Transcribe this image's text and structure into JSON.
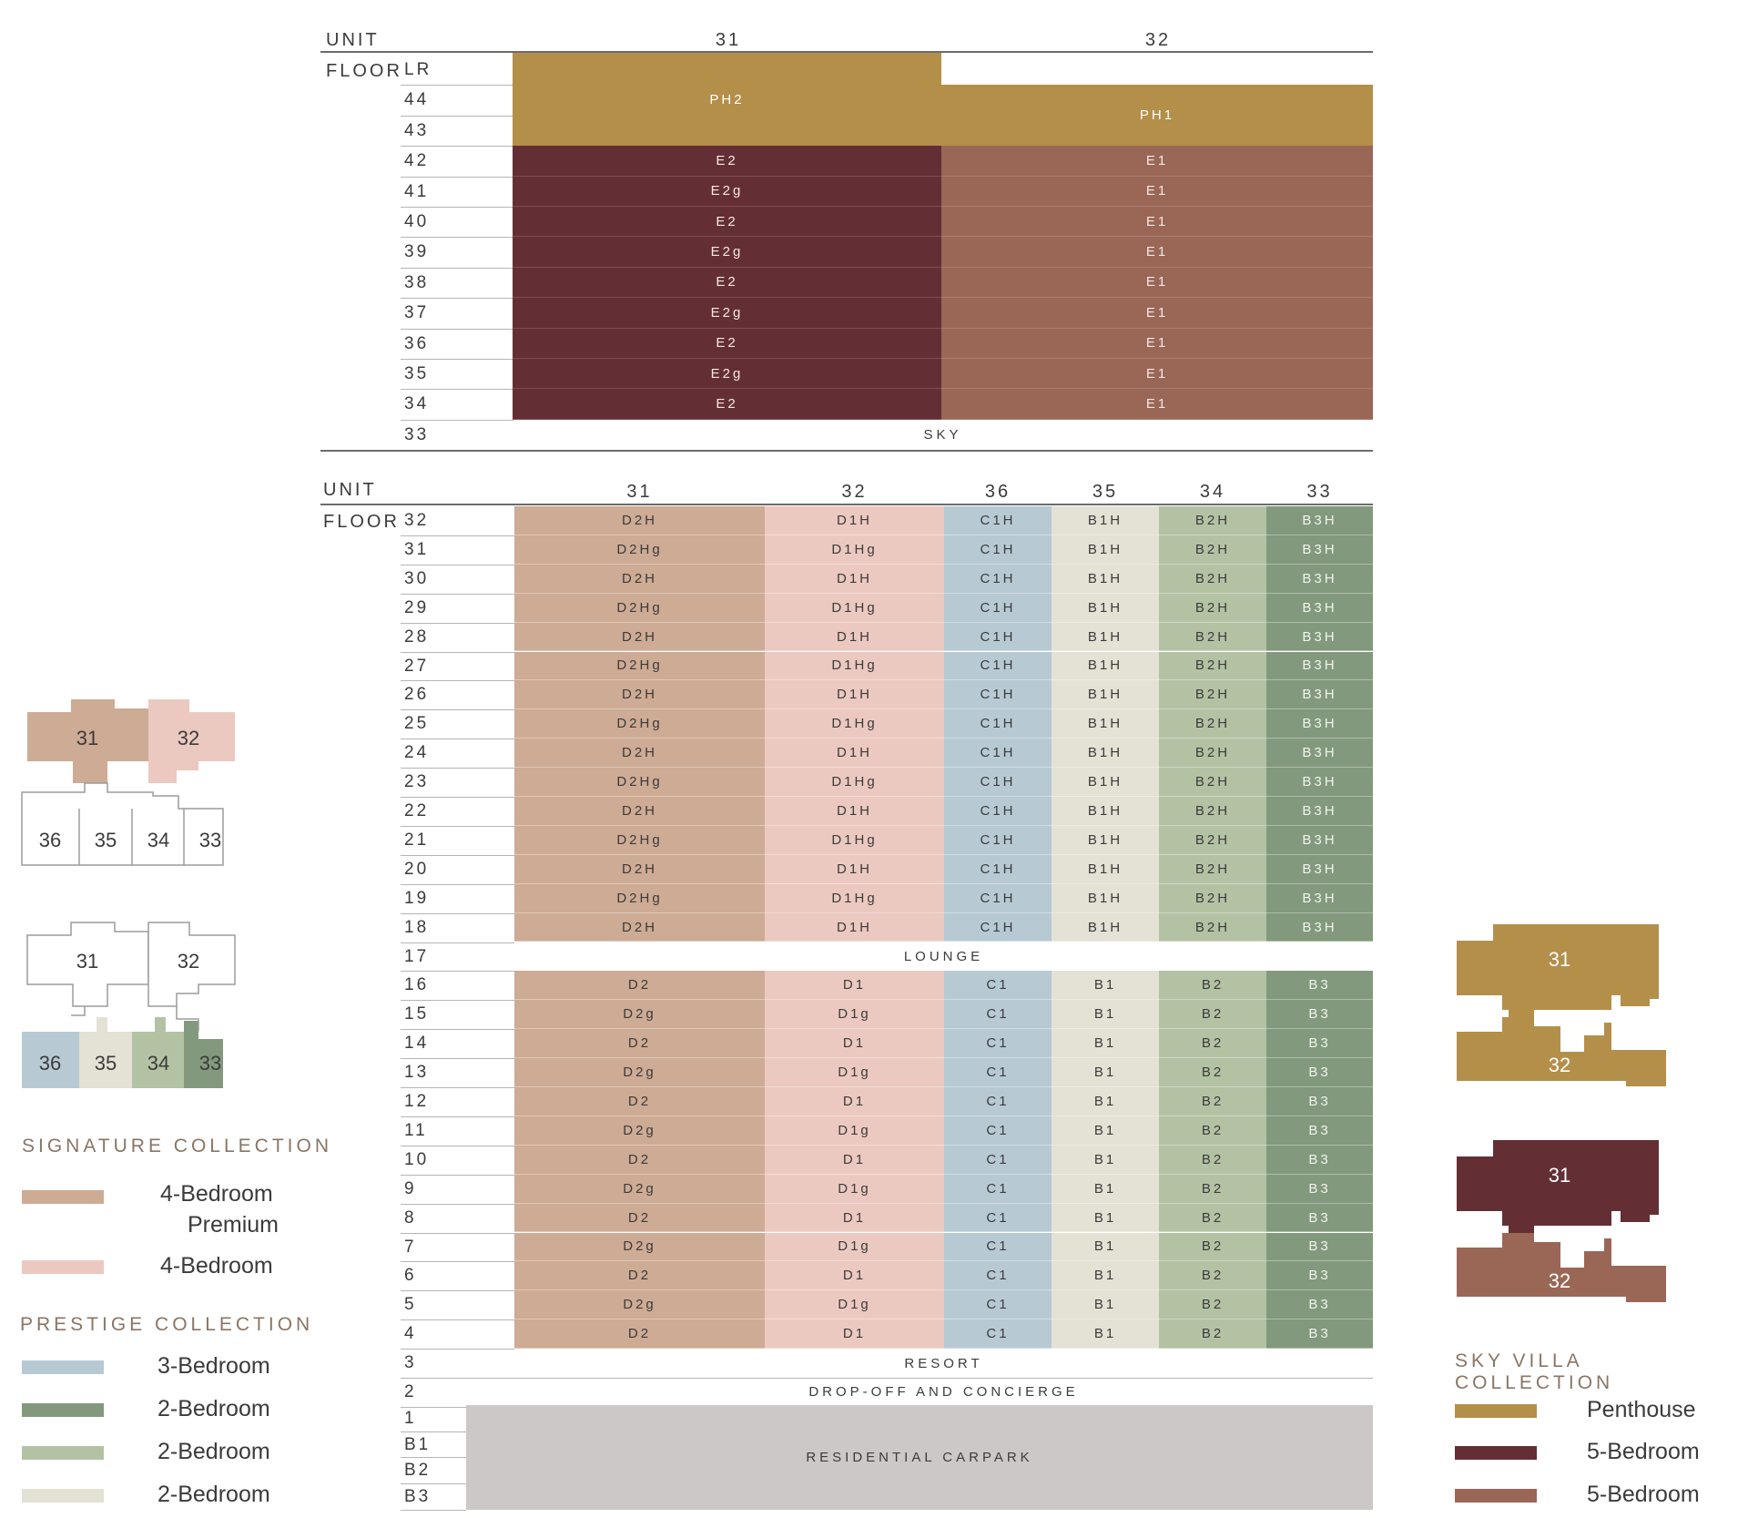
{
  "colors": {
    "penthouse": "#b48f4a",
    "e2": "#642f34",
    "e1": "#9a6757",
    "d2": "#ceab94",
    "d1": "#ecc9c0",
    "c1": "#b7cad4",
    "b1": "#e4e1d5",
    "b2": "#b4c2a4",
    "b3": "#83997d",
    "carpark": "#ccc8c7"
  },
  "top_table": {
    "unit_label": "UNIT",
    "floor_label": "FLOOR",
    "units": [
      "31",
      "32"
    ],
    "floors": [
      "LR",
      "44",
      "43",
      "42",
      "41",
      "40",
      "39",
      "38",
      "37",
      "36",
      "35",
      "34",
      "33"
    ],
    "ph_left": "PH2",
    "ph_right": "PH1",
    "left_codes": [
      "E2",
      "E2g",
      "E2",
      "E2g",
      "E2",
      "E2g",
      "E2",
      "E2g",
      "E2"
    ],
    "right_codes": [
      "E1",
      "E1",
      "E1",
      "E1",
      "E1",
      "E1",
      "E1",
      "E1",
      "E1"
    ],
    "sky_label": "SKY"
  },
  "bottom_table": {
    "unit_label": "UNIT",
    "floor_label": "FLOOR",
    "units": [
      "31",
      "32",
      "36",
      "35",
      "34",
      "33"
    ],
    "upper_floors": [
      "32",
      "31",
      "30",
      "29",
      "28",
      "27",
      "26",
      "25",
      "24",
      "23",
      "22",
      "21",
      "20",
      "19",
      "18"
    ],
    "upper_codes": {
      "odd": [
        "D2H",
        "D1H",
        "C1H",
        "B1H",
        "B2H",
        "B3H"
      ],
      "even": [
        "D2Hg",
        "D1Hg",
        "C1H",
        "B1H",
        "B2H",
        "B3H"
      ]
    },
    "lounge_floor": "17",
    "lounge_label": "LOUNGE",
    "lower_floors": [
      "16",
      "15",
      "14",
      "13",
      "12",
      "11",
      "10",
      "9",
      "8",
      "7",
      "6",
      "5",
      "4"
    ],
    "lower_codes": {
      "odd": [
        "D2",
        "D1",
        "C1",
        "B1",
        "B2",
        "B3"
      ],
      "even": [
        "D2g",
        "D1g",
        "C1",
        "B1",
        "B2",
        "B3"
      ]
    },
    "resort_floor": "3",
    "resort_label": "RESORT",
    "dropoff_floor": "2",
    "dropoff_label": "DROP-OFF AND CONCIERGE",
    "carpark_floors": [
      "1",
      "B1",
      "B2",
      "B3"
    ],
    "carpark_label": "RESIDENTIAL CARPARK"
  },
  "keyplans": {
    "plan1": {
      "top": [
        "31",
        "32"
      ],
      "bottom": [
        "36",
        "35",
        "34",
        "33"
      ]
    },
    "plan2": {
      "top": [
        "31",
        "32"
      ],
      "bottom": [
        "36",
        "35",
        "34",
        "33"
      ]
    },
    "sky1": [
      "31",
      "32"
    ],
    "sky2": [
      "31",
      "32"
    ]
  },
  "legend": {
    "signature": {
      "title": "SIGNATURE COLLECTION",
      "items": [
        {
          "label_line1": "4-Bedroom",
          "label_line2": "Premium",
          "color": "#ceab94"
        },
        {
          "label": "4-Bedroom",
          "color": "#ecc9c0"
        }
      ]
    },
    "prestige": {
      "title": "PRESTIGE COLLECTION",
      "items": [
        {
          "label": "3-Bedroom",
          "color": "#b7cad4"
        },
        {
          "label": "2-Bedroom",
          "color": "#83997d"
        },
        {
          "label": "2-Bedroom",
          "color": "#b4c2a4"
        },
        {
          "label": "2-Bedroom",
          "color": "#e4e1d5"
        }
      ]
    },
    "sky_villa": {
      "title": "SKY VILLA COLLECTION",
      "items": [
        {
          "label": "Penthouse",
          "color": "#b48f4a"
        },
        {
          "label": "5-Bedroom",
          "color": "#642f34"
        },
        {
          "label": "5-Bedroom",
          "color": "#9a6757"
        }
      ]
    }
  }
}
